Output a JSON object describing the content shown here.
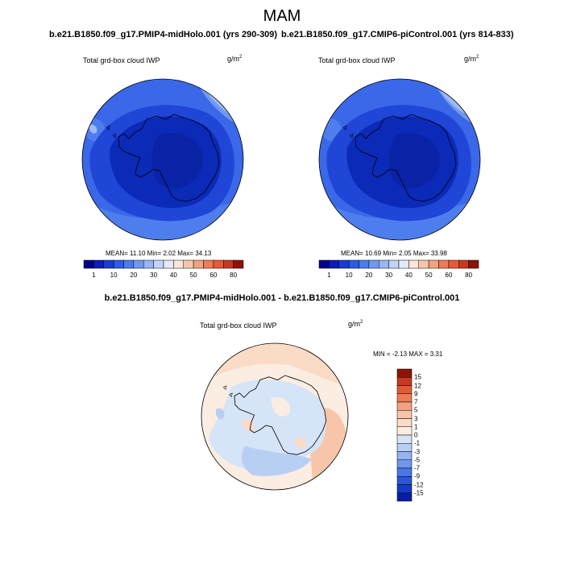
{
  "title": "MAM",
  "panels": [
    {
      "case_title": "b.e21.B1850.f09_g17.PMIP4-midHolo.001 (yrs 290-309)",
      "variable": "Total grd-box cloud IWP",
      "units_base": "g/m",
      "units_exp": "2",
      "stats": "MEAN=  11.10  Min=   2.02  Max=  34.13"
    },
    {
      "case_title": "b.e21.B1850.f09_g17.CMIP6-piControl.001 (yrs 814-833)",
      "variable": "Total grd-box cloud IWP",
      "units_base": "g/m",
      "units_exp": "2",
      "stats": "MEAN=  10.69  Min=   2.05  Max=  33.98"
    }
  ],
  "abs_colorbar": {
    "labels": [
      "1",
      "10",
      "20",
      "30",
      "40",
      "50",
      "60",
      "80"
    ],
    "colors": [
      "#00008B",
      "#0A1FB4",
      "#1A3DD0",
      "#2E5BE6",
      "#4B7BEF",
      "#7098F2",
      "#98B6F5",
      "#C1D3F8",
      "#E3EBFA",
      "#FBE6D8",
      "#F7C6AA",
      "#F3A27F",
      "#EE7C55",
      "#E45A36",
      "#C53A21",
      "#8F1207"
    ]
  },
  "difference": {
    "title": "b.e21.B1850.f09_g17.PMIP4-midHolo.001 - b.e21.B1850.f09_g17.CMIP6-piControl.001",
    "variable": "Total grd-box cloud IWP",
    "units_base": "g/m",
    "units_exp": "2",
    "minmax": "MIN = -2.13 MAX =  3.31",
    "colorbar_labels": [
      "15",
      "12",
      "9",
      "7",
      "5",
      "3",
      "1",
      "0",
      "-1",
      "-3",
      "-5",
      "-7",
      "-9",
      "-12",
      "-15"
    ],
    "colorbar_colors": [
      "#8F1207",
      "#C53A21",
      "#E45A36",
      "#EE7C55",
      "#F3A27F",
      "#F7C6AA",
      "#FADBC6",
      "#FCEDE2",
      "#D6E4F7",
      "#B8CFF4",
      "#93B3F1",
      "#6F95EE",
      "#4A76E8",
      "#2B55DC",
      "#173ACC",
      "#0A1D9E"
    ]
  }
}
